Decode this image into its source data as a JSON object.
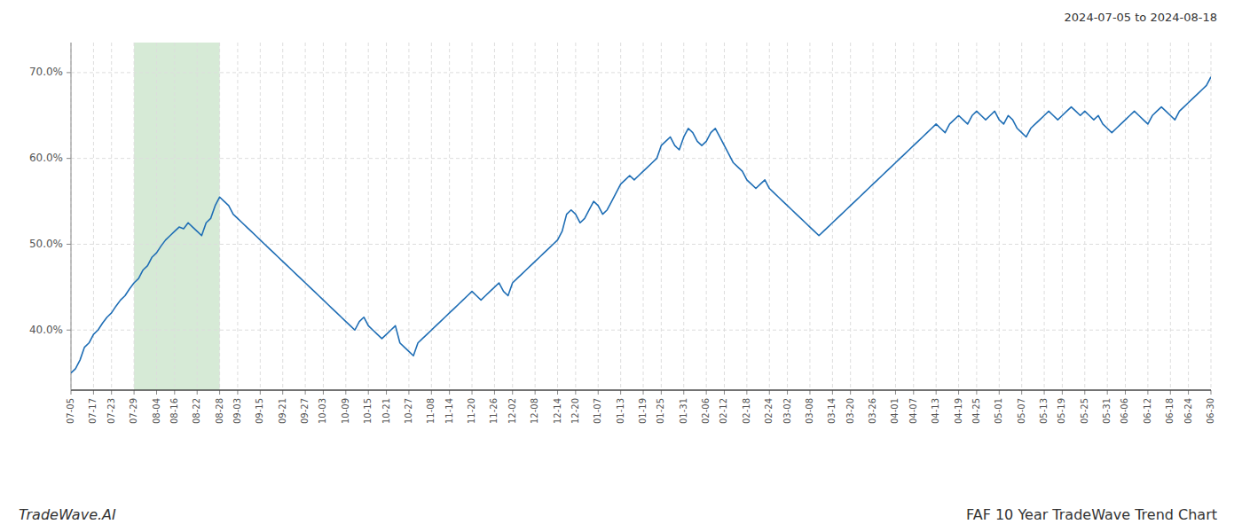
{
  "chart_data": {
    "type": "line",
    "title": "FAF 10 Year TradeWave Trend Chart",
    "subtitle": "2024-07-05 to 2024-08-18",
    "annotations": [
      "TradeWave.AI"
    ],
    "color": "#1f6eb5",
    "grid": true,
    "ylim": [
      33.0,
      73.5
    ],
    "yticks": [
      {
        "value": 40.0,
        "label": "40.0%"
      },
      {
        "value": 50.0,
        "label": "50.0%"
      },
      {
        "value": 60.0,
        "label": "60.0%"
      },
      {
        "value": 70.0,
        "label": "70.0%"
      }
    ],
    "shaded_range": {
      "from": "07-29",
      "to": "08-28",
      "color": "#d6ead6"
    },
    "categories": [
      "07-05",
      null,
      null,
      null,
      null,
      "07-17",
      null,
      null,
      null,
      "07-23",
      null,
      null,
      null,
      null,
      "07-29",
      null,
      null,
      null,
      null,
      "08-04",
      null,
      null,
      null,
      "08-16",
      null,
      null,
      null,
      null,
      "08-22",
      null,
      null,
      null,
      null,
      "08-28",
      null,
      null,
      null,
      "09-03",
      null,
      null,
      null,
      null,
      "09-15",
      null,
      null,
      null,
      null,
      "09-21",
      null,
      null,
      null,
      null,
      "09-27",
      null,
      null,
      null,
      "10-03",
      null,
      null,
      null,
      null,
      "10-09",
      null,
      null,
      null,
      null,
      "10-15",
      null,
      null,
      null,
      "10-21",
      null,
      null,
      null,
      null,
      "10-27",
      null,
      null,
      null,
      null,
      "11-08",
      null,
      null,
      null,
      "11-14",
      null,
      null,
      null,
      null,
      "11-20",
      null,
      null,
      null,
      null,
      "11-26",
      null,
      null,
      null,
      "12-02",
      null,
      null,
      null,
      null,
      "12-08",
      null,
      null,
      null,
      null,
      "12-14",
      null,
      null,
      null,
      "12-20",
      null,
      null,
      null,
      null,
      "01-07",
      null,
      null,
      null,
      null,
      "01-13",
      null,
      null,
      null,
      null,
      "01-19",
      null,
      null,
      null,
      "01-25",
      null,
      null,
      null,
      null,
      "01-31",
      null,
      null,
      null,
      null,
      "02-06",
      null,
      null,
      null,
      "02-12",
      null,
      null,
      null,
      null,
      "02-18",
      null,
      null,
      null,
      null,
      "02-24",
      null,
      null,
      null,
      "03-02",
      null,
      null,
      null,
      null,
      "03-08",
      null,
      null,
      null,
      null,
      "03-14",
      null,
      null,
      null,
      "03-20",
      null,
      null,
      null,
      null,
      "03-26",
      null,
      null,
      null,
      null,
      "04-01",
      null,
      null,
      null,
      "04-07",
      null,
      null,
      null,
      null,
      "04-13",
      null,
      null,
      null,
      null,
      "04-19",
      null,
      null,
      null,
      "04-25",
      null,
      null,
      null,
      null,
      "05-01",
      null,
      null,
      null,
      null,
      "05-07",
      null,
      null,
      null,
      null,
      "05-13",
      null,
      null,
      null,
      "05-19",
      null,
      null,
      null,
      null,
      "05-25",
      null,
      null,
      null,
      null,
      "05-31",
      null,
      null,
      null,
      "06-06",
      null,
      null,
      null,
      null,
      "06-12",
      null,
      null,
      null,
      null,
      "06-18",
      null,
      null,
      null,
      "06-24",
      null,
      null,
      null,
      null,
      "06-30"
    ],
    "values": [
      35.0,
      35.5,
      36.5,
      38.0,
      38.5,
      39.5,
      40.0,
      40.8,
      41.5,
      42.0,
      42.8,
      43.5,
      44.0,
      44.8,
      45.5,
      46.0,
      47.0,
      47.5,
      48.5,
      49.0,
      49.8,
      50.5,
      51.0,
      51.5,
      52.0,
      51.8,
      52.5,
      52.0,
      51.5,
      51.0,
      52.5,
      53.0,
      54.5,
      55.5,
      55.0,
      54.5,
      53.5,
      53.0,
      52.5,
      52.0,
      51.5,
      51.0,
      50.5,
      50.0,
      49.5,
      49.0,
      48.5,
      48.0,
      47.5,
      47.0,
      46.5,
      46.0,
      45.5,
      45.0,
      44.5,
      44.0,
      43.5,
      43.0,
      42.5,
      42.0,
      41.5,
      41.0,
      40.5,
      40.0,
      41.0,
      41.5,
      40.5,
      40.0,
      39.5,
      39.0,
      39.5,
      40.0,
      40.5,
      38.5,
      38.0,
      37.5,
      37.0,
      38.5,
      39.0,
      39.5,
      40.0,
      40.5,
      41.0,
      41.5,
      42.0,
      42.5,
      43.0,
      43.5,
      44.0,
      44.5,
      44.0,
      43.5,
      44.0,
      44.5,
      45.0,
      45.5,
      44.5,
      44.0,
      45.5,
      46.0,
      46.5,
      47.0,
      47.5,
      48.0,
      48.5,
      49.0,
      49.5,
      50.0,
      50.5,
      51.5,
      53.5,
      54.0,
      53.5,
      52.5,
      53.0,
      54.0,
      55.0,
      54.5,
      53.5,
      54.0,
      55.0,
      56.0,
      57.0,
      57.5,
      58.0,
      57.5,
      58.0,
      58.5,
      59.0,
      59.5,
      60.0,
      61.5,
      62.0,
      62.5,
      61.5,
      61.0,
      62.5,
      63.5,
      63.0,
      62.0,
      61.5,
      62.0,
      63.0,
      63.5,
      62.5,
      61.5,
      60.5,
      59.5,
      59.0,
      58.5,
      57.5,
      57.0,
      56.5,
      57.0,
      57.5,
      56.5,
      56.0,
      55.5,
      55.0,
      54.5,
      54.0,
      53.5,
      53.0,
      52.5,
      52.0,
      51.5,
      51.0,
      51.5,
      52.0,
      52.5,
      53.0,
      53.5,
      54.0,
      54.5,
      55.0,
      55.5,
      56.0,
      56.5,
      57.0,
      57.5,
      58.0,
      58.5,
      59.0,
      59.5,
      60.0,
      60.5,
      61.0,
      61.5,
      62.0,
      62.5,
      63.0,
      63.5,
      64.0,
      63.5,
      63.0,
      64.0,
      64.5,
      65.0,
      64.5,
      64.0,
      65.0,
      65.5,
      65.0,
      64.5,
      65.0,
      65.5,
      64.5,
      64.0,
      65.0,
      64.5,
      63.5,
      63.0,
      62.5,
      63.5,
      64.0,
      64.5,
      65.0,
      65.5,
      65.0,
      64.5,
      65.0,
      65.5,
      66.0,
      65.5,
      65.0,
      65.5,
      65.0,
      64.5,
      65.0,
      64.0,
      63.5,
      63.0,
      63.5,
      64.0,
      64.5,
      65.0,
      65.5,
      65.0,
      64.5,
      64.0,
      65.0,
      65.5,
      66.0,
      65.5,
      65.0,
      64.5,
      65.5,
      66.0,
      66.5,
      67.0,
      67.5,
      68.0,
      68.5,
      69.5
    ]
  }
}
